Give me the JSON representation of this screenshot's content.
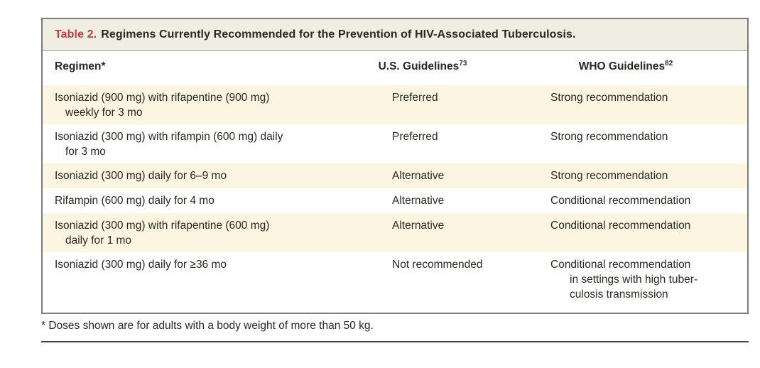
{
  "table": {
    "label": "Table 2.",
    "title": "Regimens Currently Recommended for the Prevention of HIV-Associated Tuberculosis.",
    "columns": [
      {
        "label": "Regimen*",
        "sup": ""
      },
      {
        "label": "U.S. Guidelines",
        "sup": "73"
      },
      {
        "label": "WHO Guidelines",
        "sup": "82"
      }
    ],
    "rows": [
      {
        "regimen_lines": [
          "Isoniazid (900 mg) with rifapentine (900 mg)",
          "weekly for 3 mo"
        ],
        "us": "Preferred",
        "who_lines": [
          "Strong recommendation"
        ]
      },
      {
        "regimen_lines": [
          "Isoniazid (300 mg) with rifampin (600 mg) daily",
          "for 3 mo"
        ],
        "us": "Preferred",
        "who_lines": [
          "Strong recommendation"
        ]
      },
      {
        "regimen_lines": [
          "Isoniazid (300 mg) daily for 6–9 mo"
        ],
        "us": "Alternative",
        "who_lines": [
          "Strong recommendation"
        ]
      },
      {
        "regimen_lines": [
          "Rifampin (600 mg) daily for 4 mo"
        ],
        "us": "Alternative",
        "who_lines": [
          "Conditional recommendation"
        ]
      },
      {
        "regimen_lines": [
          "Isoniazid (300 mg) with rifapentine (600 mg)",
          "daily for 1 mo"
        ],
        "us": "Alternative",
        "who_lines": [
          "Conditional recommendation"
        ]
      },
      {
        "regimen_lines": [
          "Isoniazid (300 mg) daily for ≥36 mo"
        ],
        "us": "Not recommended",
        "who_lines": [
          "Conditional recommendation",
          "in settings with high tuber-",
          "culosis transmission"
        ]
      }
    ],
    "footnote": "* Doses shown are for adults with a body weight of more than 50 kg."
  },
  "colors": {
    "title_bar_bg": "#f0ede2",
    "stripe_bg": "#fbf5e2",
    "table_border": "#7b7c7e",
    "accent_red": "#c23d3f",
    "text": "#2b2721",
    "footnote_rule": "#454547"
  }
}
